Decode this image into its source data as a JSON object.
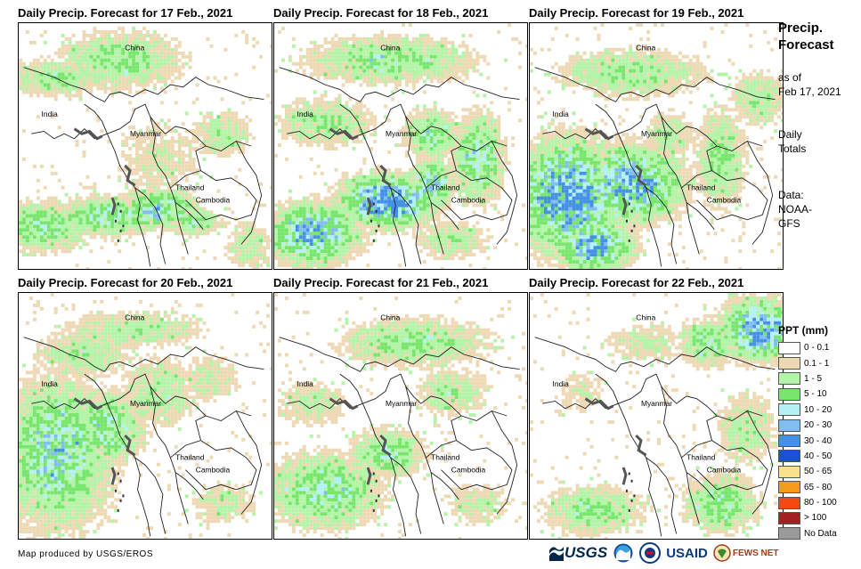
{
  "panels": [
    {
      "title": "Daily Precip. Forecast for 17 Feb., 2021"
    },
    {
      "title": "Daily Precip. Forecast for 18 Feb., 2021"
    },
    {
      "title": "Daily Precip. Forecast for 19 Feb., 2021"
    },
    {
      "title": "Daily Precip. Forecast for 20 Feb., 2021"
    },
    {
      "title": "Daily Precip. Forecast for 21 Feb., 2021"
    },
    {
      "title": "Daily Precip. Forecast for 22 Feb., 2021"
    }
  ],
  "map_labels": {
    "china": "China",
    "india": "India",
    "myanmar": "Myanmar",
    "thailand": "Thailand",
    "cambodia": "Cambodia"
  },
  "side": {
    "title_line1": "Precip.",
    "title_line2": "Forecast",
    "asof_line1": "as of",
    "asof_line2": "Feb 17, 2021",
    "totals_line1": "Daily",
    "totals_line2": "Totals",
    "data_line1": "Data:",
    "data_line2": "NOAA-",
    "data_line3": "GFS"
  },
  "legend": {
    "title": "PPT (mm)",
    "items": [
      {
        "label": "0 - 0.1",
        "color": "#ffffff"
      },
      {
        "label": "0.1 - 1",
        "color": "#eed9b5"
      },
      {
        "label": "1 - 5",
        "color": "#b4f4a8"
      },
      {
        "label": "5 - 10",
        "color": "#78e66c"
      },
      {
        "label": "10 - 20",
        "color": "#b5f0f5"
      },
      {
        "label": "20 - 30",
        "color": "#80bdf0"
      },
      {
        "label": "30 - 40",
        "color": "#4490e6"
      },
      {
        "label": "40 - 50",
        "color": "#1a50d8"
      },
      {
        "label": "50 - 65",
        "color": "#f9e28a"
      },
      {
        "label": "65 - 80",
        "color": "#f79b1c"
      },
      {
        "label": "80 - 100",
        "color": "#f24b12"
      },
      {
        "label": "> 100",
        "color": "#a52020"
      },
      {
        "label": "No Data",
        "color": "#9a9a9a"
      }
    ]
  },
  "credit": "Map produced by USGS/EROS",
  "logos": {
    "usgs": "USGS",
    "usaid": "USAID",
    "fewsnet": "FEWS NET"
  }
}
